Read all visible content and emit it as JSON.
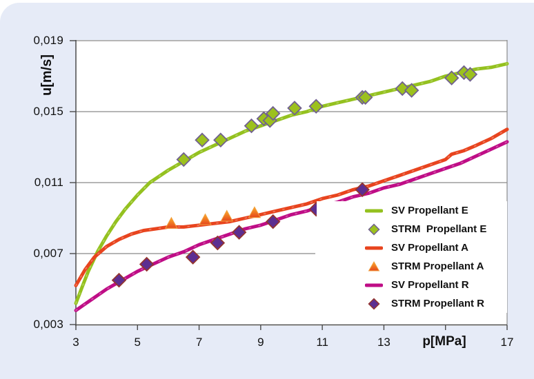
{
  "page": {
    "background": "#E6EBF7",
    "plot_background": "#FFFFFF",
    "grid_color": "#6B6B6B",
    "axis_color": "#4A4A4A",
    "text_color": "#111111"
  },
  "chart_data": {
    "type": "line",
    "title": "",
    "xlabel": "p[MPa]",
    "ylabel": "u[m/s]",
    "xlim": [
      3,
      17
    ],
    "ylim": [
      0.003,
      0.019
    ],
    "grid": "horizontal-only",
    "legend_position": "right-middle-inside",
    "x_ticks": [
      3,
      5,
      7,
      9,
      11,
      13,
      15,
      17
    ],
    "x_tick_labels": [
      "3",
      "5",
      "7",
      "9",
      "11",
      "13",
      "",
      "17"
    ],
    "y_ticks": [
      0.003,
      0.007,
      0.011,
      0.015,
      0.019
    ],
    "y_tick_labels": [
      "0,003",
      "0,007",
      "0,011",
      "0,015",
      "0,019"
    ],
    "series": [
      {
        "name": "SV Propellant E",
        "type": "line",
        "color": "#94C11F",
        "points": [
          [
            3,
            0.0042
          ],
          [
            3.2,
            0.0051
          ],
          [
            3.4,
            0.006
          ],
          [
            3.7,
            0.0071
          ],
          [
            4,
            0.008
          ],
          [
            4.3,
            0.0088
          ],
          [
            4.6,
            0.0095
          ],
          [
            5,
            0.0103
          ],
          [
            5.4,
            0.011
          ],
          [
            6,
            0.0117
          ],
          [
            6.5,
            0.0122
          ],
          [
            7,
            0.0127
          ],
          [
            7.5,
            0.0131
          ],
          [
            8,
            0.0135
          ],
          [
            8.5,
            0.0139
          ],
          [
            9,
            0.0142
          ],
          [
            9.5,
            0.0145
          ],
          [
            10,
            0.0148
          ],
          [
            10.5,
            0.015
          ],
          [
            11,
            0.0153
          ],
          [
            11.5,
            0.0155
          ],
          [
            12,
            0.0157
          ],
          [
            12.5,
            0.0159
          ],
          [
            13,
            0.0161
          ],
          [
            13.5,
            0.0163
          ],
          [
            14,
            0.0165
          ],
          [
            14.5,
            0.0167
          ],
          [
            15,
            0.017
          ],
          [
            15.5,
            0.0172
          ],
          [
            16,
            0.0174
          ],
          [
            16.5,
            0.0175
          ],
          [
            17,
            0.0177
          ]
        ]
      },
      {
        "name": "STRM  Propellant E",
        "type": "scatter",
        "marker": "diamond",
        "fill": "#9CC11D",
        "stroke": "#71618F",
        "points": [
          [
            6.5,
            0.0123
          ],
          [
            7.1,
            0.0134
          ],
          [
            7.7,
            0.0134
          ],
          [
            8.7,
            0.0142
          ],
          [
            9.1,
            0.0146
          ],
          [
            9.3,
            0.0145
          ],
          [
            9.4,
            0.0149
          ],
          [
            10.1,
            0.0152
          ],
          [
            10.8,
            0.0153
          ],
          [
            12.3,
            0.0158
          ],
          [
            12.4,
            0.0158
          ],
          [
            13.6,
            0.0163
          ],
          [
            13.9,
            0.0162
          ],
          [
            15.2,
            0.0169
          ],
          [
            15.6,
            0.0172
          ],
          [
            15.8,
            0.0171
          ]
        ]
      },
      {
        "name": "SV Propellant A",
        "type": "line",
        "color": "#E8441E",
        "points": [
          [
            3,
            0.0052
          ],
          [
            3.3,
            0.0061
          ],
          [
            3.6,
            0.0068
          ],
          [
            4,
            0.0074
          ],
          [
            4.4,
            0.0078
          ],
          [
            4.8,
            0.0081
          ],
          [
            5.2,
            0.0083
          ],
          [
            5.6,
            0.0084
          ],
          [
            6,
            0.0085
          ],
          [
            6.5,
            0.0085
          ],
          [
            7,
            0.0086
          ],
          [
            7.5,
            0.0087
          ],
          [
            8,
            0.0088
          ],
          [
            8.5,
            0.009
          ],
          [
            9,
            0.0092
          ],
          [
            9.5,
            0.0094
          ],
          [
            10,
            0.0096
          ],
          [
            10.5,
            0.0098
          ],
          [
            11,
            0.0101
          ],
          [
            11.5,
            0.0103
          ],
          [
            12,
            0.0106
          ],
          [
            12.5,
            0.0108
          ],
          [
            13,
            0.0111
          ],
          [
            13.5,
            0.0114
          ],
          [
            14,
            0.0117
          ],
          [
            14.5,
            0.012
          ],
          [
            15,
            0.0123
          ],
          [
            15.2,
            0.0126
          ],
          [
            15.6,
            0.0128
          ],
          [
            16,
            0.0131
          ],
          [
            16.5,
            0.0135
          ],
          [
            17,
            0.014
          ]
        ]
      },
      {
        "name": "STRM Propellant A",
        "type": "scatter",
        "marker": "triangle",
        "fill_top": "#FBAA2A",
        "fill_bottom": "#E5461C",
        "stroke": "#F2A23F",
        "points": [
          [
            6.1,
            0.0087
          ],
          [
            7.2,
            0.0089
          ],
          [
            7.9,
            0.0091
          ],
          [
            8.8,
            0.0093
          ]
        ]
      },
      {
        "name": "SV Propellant R",
        "type": "line",
        "color": "#BF0D86",
        "points": [
          [
            3,
            0.0038
          ],
          [
            3.5,
            0.0044
          ],
          [
            4,
            0.005
          ],
          [
            4.5,
            0.0055
          ],
          [
            5,
            0.006
          ],
          [
            5.5,
            0.0064
          ],
          [
            6,
            0.0068
          ],
          [
            6.5,
            0.0071
          ],
          [
            7,
            0.0075
          ],
          [
            7.5,
            0.0078
          ],
          [
            8,
            0.0081
          ],
          [
            8.5,
            0.0084
          ],
          [
            9,
            0.0086
          ],
          [
            9.5,
            0.0089
          ],
          [
            10,
            0.0092
          ],
          [
            10.5,
            0.0094
          ],
          [
            11,
            0.0097
          ],
          [
            11.5,
            0.0099
          ],
          [
            12,
            0.0102
          ],
          [
            12.5,
            0.0104
          ],
          [
            13,
            0.0107
          ],
          [
            13.5,
            0.0109
          ],
          [
            14,
            0.0112
          ],
          [
            14.5,
            0.0115
          ],
          [
            15,
            0.0118
          ],
          [
            15.5,
            0.0121
          ],
          [
            16,
            0.0125
          ],
          [
            16.5,
            0.0129
          ],
          [
            17,
            0.0133
          ]
        ]
      },
      {
        "name": "STRM Propellant R",
        "type": "scatter",
        "marker": "diamond",
        "fill": "#5C2E91",
        "stroke": "#94342F",
        "points": [
          [
            4.4,
            0.0055
          ],
          [
            5.3,
            0.0064
          ],
          [
            6.8,
            0.0068
          ],
          [
            7.6,
            0.0076
          ],
          [
            8.3,
            0.0082
          ],
          [
            9.4,
            0.0088
          ],
          [
            10.8,
            0.0095
          ],
          [
            12.3,
            0.0106
          ]
        ]
      }
    ]
  }
}
